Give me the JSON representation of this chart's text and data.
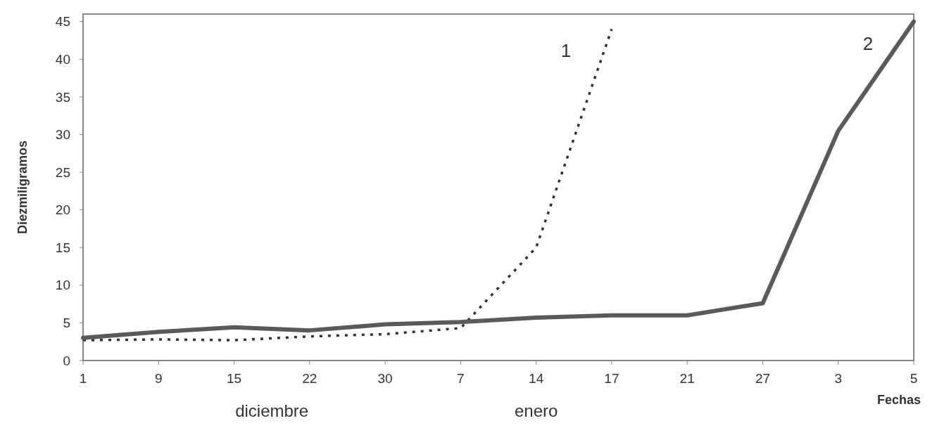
{
  "chart_data": {
    "type": "line",
    "xlabel": "Fechas",
    "ylabel": "Diezmiligramos",
    "categories": [
      "1",
      "9",
      "15",
      "22",
      "30",
      "7",
      "14",
      "17",
      "21",
      "27",
      "3",
      "5"
    ],
    "series": [
      {
        "name": "1",
        "color": "#333333",
        "line_style": "dotted",
        "values": [
          2.7,
          2.8,
          2.7,
          3.2,
          3.5,
          4.3,
          15,
          44,
          null,
          null,
          null,
          null
        ]
      },
      {
        "name": "2",
        "color": "#5a5a5a",
        "line_style": "solid",
        "values": [
          3,
          3.8,
          4.4,
          4,
          4.8,
          5.1,
          5.7,
          6,
          6,
          7.6,
          30.5,
          45
        ]
      }
    ],
    "ylim": [
      0,
      46
    ],
    "yticks": [
      0,
      5,
      10,
      15,
      20,
      25,
      30,
      35,
      40,
      45
    ],
    "grid": false,
    "annotations": [
      "diciembre",
      "enero"
    ]
  }
}
